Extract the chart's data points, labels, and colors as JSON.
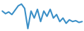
{
  "y": [
    30,
    27,
    29,
    26,
    31,
    36,
    38,
    33,
    10,
    30,
    22,
    32,
    18,
    30,
    24,
    32,
    22,
    26,
    18,
    22,
    16,
    20,
    18,
    19,
    17,
    18
  ],
  "line_color": "#3A8FC7",
  "bg_color": "#ffffff",
  "linewidth": 1.5
}
